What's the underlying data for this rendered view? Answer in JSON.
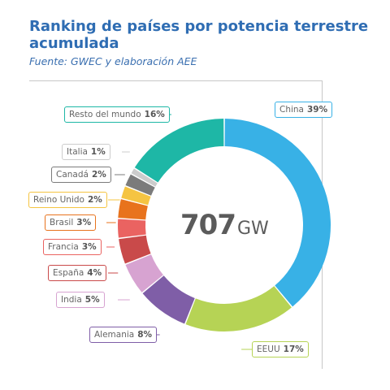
{
  "chart_data": {
    "type": "pie",
    "title": "Ranking de países por potencia terrestre acumulada",
    "subtitle": "Fuente: GWEC y elaboración AEE",
    "total": "707",
    "total_unit": "GW",
    "slices": [
      {
        "label": "China",
        "percent_label": "39%",
        "value": 39,
        "color": "#38b1e6"
      },
      {
        "label": "EEUU",
        "percent_label": "17%",
        "value": 17,
        "color": "#b6d355"
      },
      {
        "label": "Alemania",
        "percent_label": "8%",
        "value": 8,
        "color": "#7f5ea7"
      },
      {
        "label": "India",
        "percent_label": "5%",
        "value": 5,
        "color": "#d7a3d1"
      },
      {
        "label": "España",
        "percent_label": "4%",
        "value": 4,
        "color": "#c94a4a"
      },
      {
        "label": "Francia",
        "percent_label": "3%",
        "value": 3,
        "color": "#ea6361"
      },
      {
        "label": "Brasil",
        "percent_label": "3%",
        "value": 3,
        "color": "#e8731d"
      },
      {
        "label": "Reino Unido",
        "percent_label": "2%",
        "value": 2,
        "color": "#f5c442"
      },
      {
        "label": "Canadá",
        "percent_label": "2%",
        "value": 2,
        "color": "#7b7b7b"
      },
      {
        "label": "Italia",
        "percent_label": "1%",
        "value": 1,
        "color": "#cccccc"
      },
      {
        "label": "Resto del mundo",
        "percent_label": "16%",
        "value": 16,
        "color": "#1eb7a6"
      }
    ]
  }
}
